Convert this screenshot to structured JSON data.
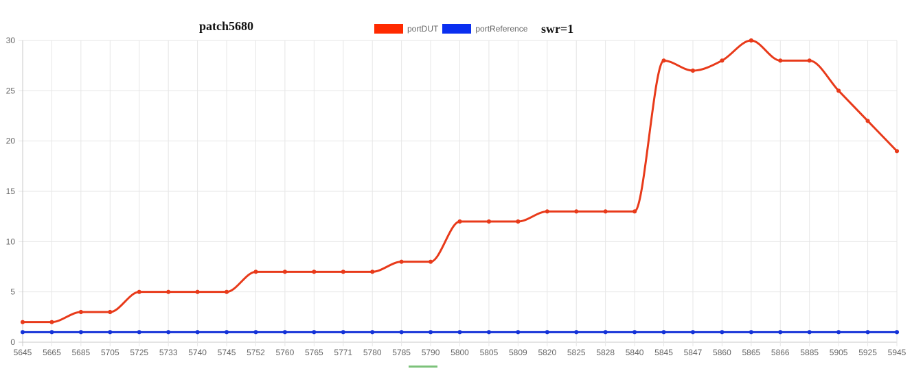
{
  "chart_data": {
    "type": "line",
    "title": "patch5680",
    "subtitle": "swr=1",
    "categories": [
      "5645",
      "5665",
      "5685",
      "5705",
      "5725",
      "5733",
      "5740",
      "5745",
      "5752",
      "5760",
      "5765",
      "5771",
      "5780",
      "5785",
      "5790",
      "5800",
      "5805",
      "5809",
      "5820",
      "5825",
      "5828",
      "5840",
      "5845",
      "5847",
      "5860",
      "5865",
      "5866",
      "5885",
      "5905",
      "5925",
      "5945"
    ],
    "series": [
      {
        "name": "portDUT",
        "color": "#ff2a00",
        "line_color": "#e83a1a",
        "values": [
          2,
          2,
          3,
          3,
          5,
          5,
          5,
          5,
          7,
          7,
          7,
          7,
          7,
          8,
          8,
          12,
          12,
          12,
          13,
          13,
          13,
          13,
          28,
          27,
          28,
          30,
          28,
          28,
          25,
          22,
          19
        ]
      },
      {
        "name": "portReference",
        "color": "#0a2ff0",
        "line_color": "#1432d8",
        "values": [
          1,
          1,
          1,
          1,
          1,
          1,
          1,
          1,
          1,
          1,
          1,
          1,
          1,
          1,
          1,
          1,
          1,
          1,
          1,
          1,
          1,
          1,
          1,
          1,
          1,
          1,
          1,
          1,
          1,
          1,
          1
        ]
      }
    ],
    "ylim": [
      0,
      30
    ],
    "yticks": [
      0,
      5,
      10,
      15,
      20,
      25,
      30
    ],
    "grid": true,
    "legend_position": "top-center",
    "xlabel": "",
    "ylabel": ""
  }
}
